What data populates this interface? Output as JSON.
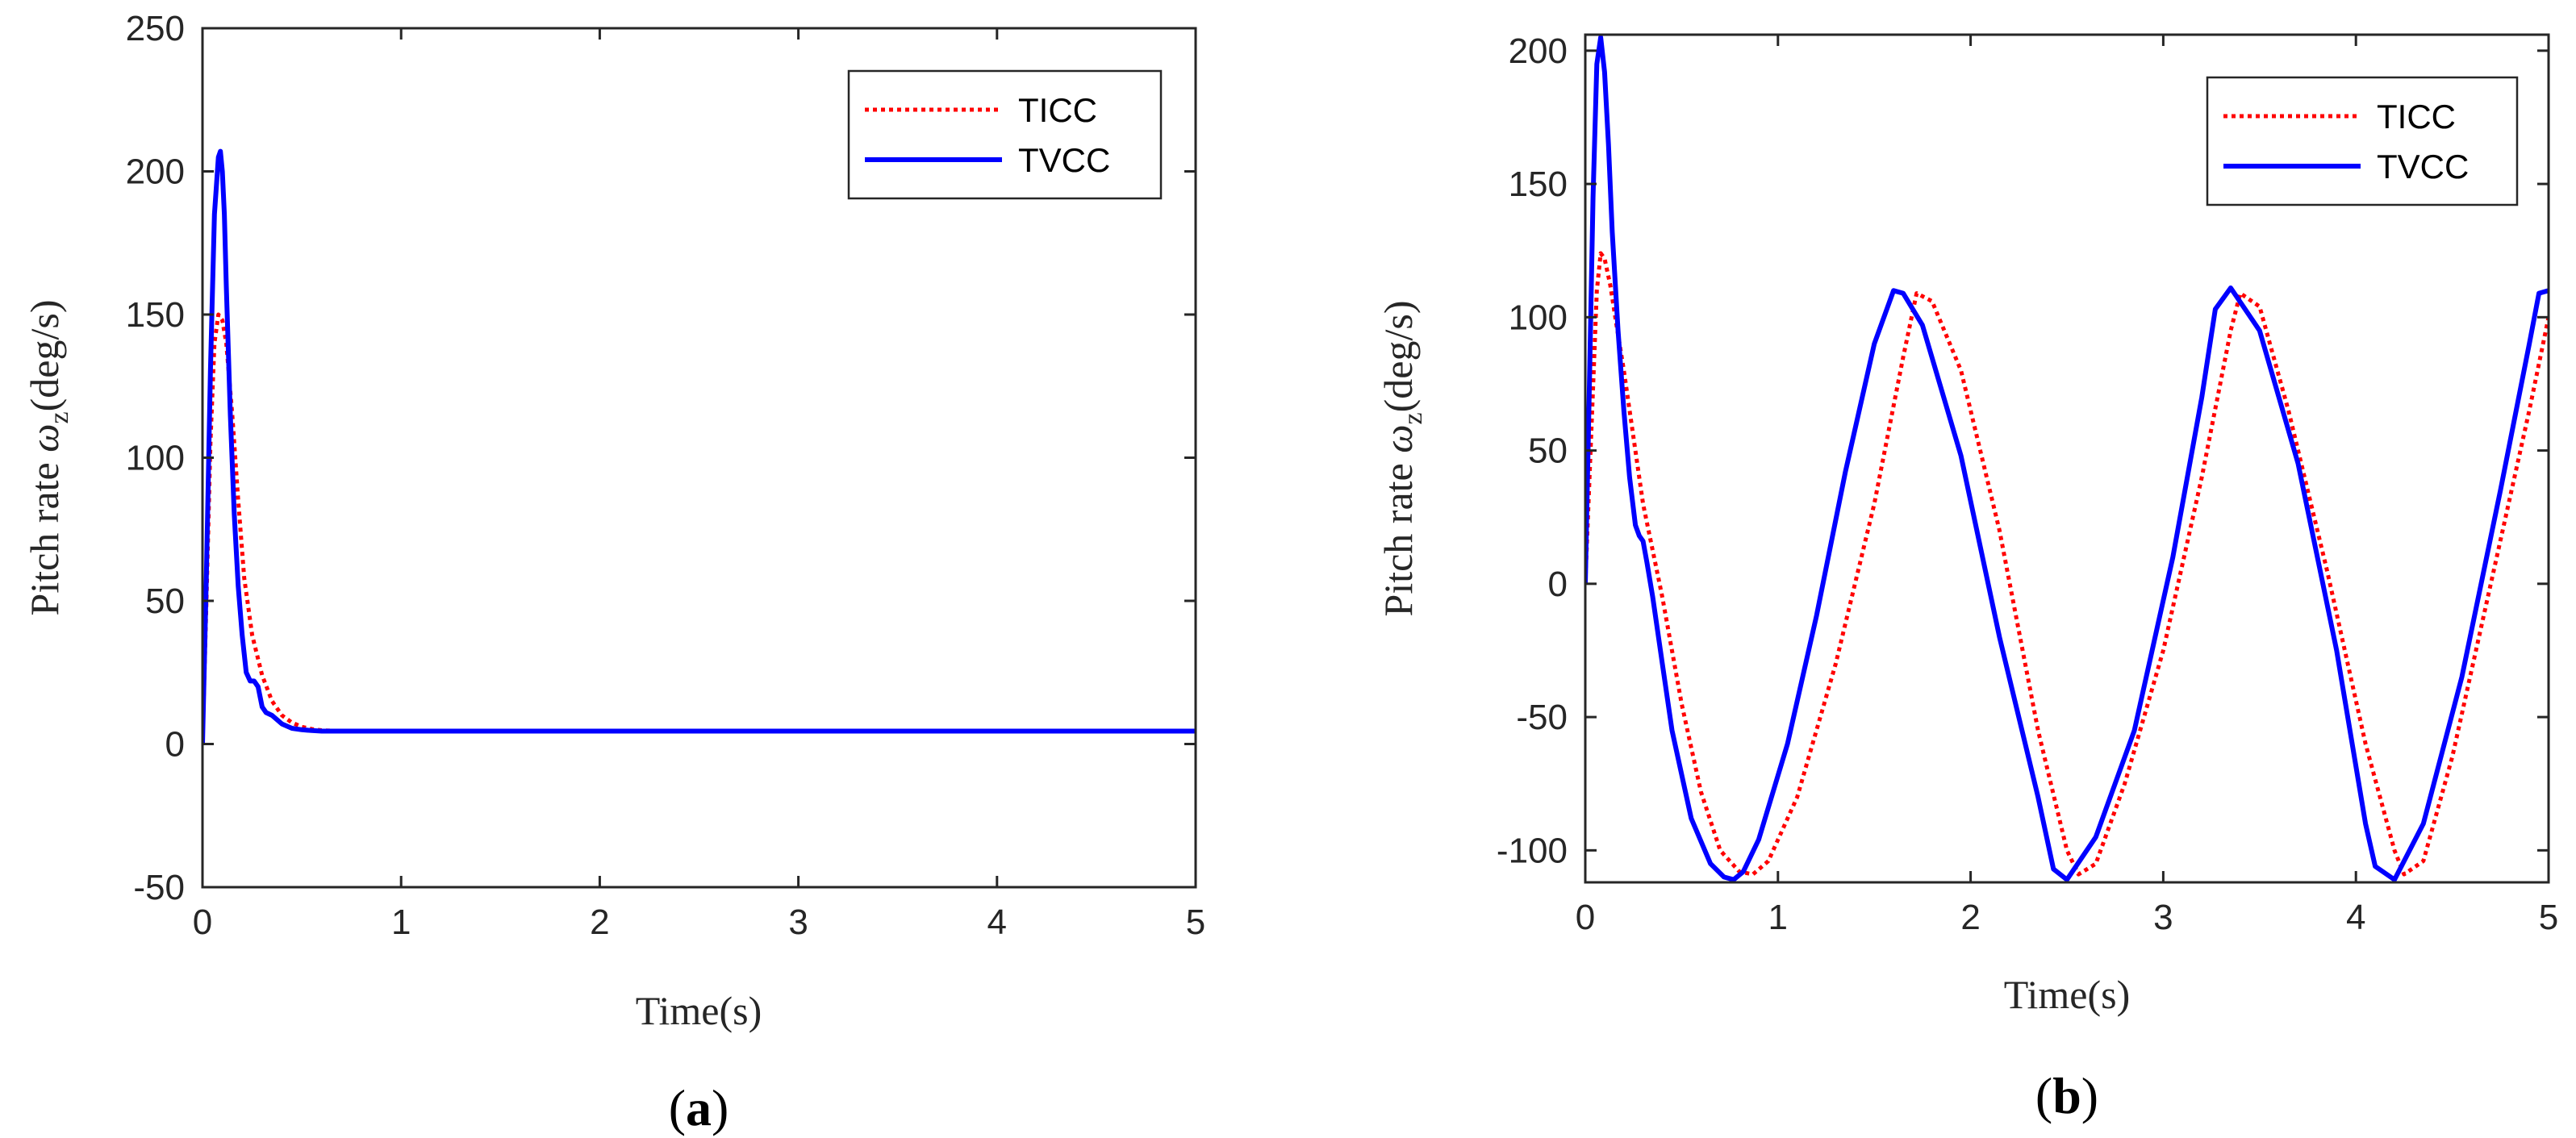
{
  "colors": {
    "ticc": "#ff0000",
    "tvcc": "#0000ff",
    "axis": "#262626"
  },
  "chart_data": [
    {
      "type": "line",
      "panel_label": "(a)",
      "panel_letter": "a",
      "xlabel": "Time(s)",
      "ylabel_prefix": "Pitch rate ",
      "ylabel_symbol": "ω",
      "ylabel_subscript": "z",
      "ylabel_suffix": "(deg/s)",
      "xlim": [
        0,
        5
      ],
      "ylim": [
        -50,
        250
      ],
      "xticks": [
        0,
        1,
        2,
        3,
        4,
        5
      ],
      "xtick_labels": [
        "0",
        "1",
        "2",
        "3",
        "4",
        "5"
      ],
      "yticks": [
        -50,
        0,
        50,
        100,
        150,
        200,
        250
      ],
      "ytick_labels": [
        "-50",
        "0",
        "50",
        "100",
        "150",
        "200",
        "250"
      ],
      "legend_position": "top-right",
      "series": [
        {
          "name": "TICC",
          "style": "dotted",
          "color": "#ff0000",
          "x": [
            0,
            0.02,
            0.04,
            0.06,
            0.08,
            0.1,
            0.12,
            0.15,
            0.18,
            0.21,
            0.25,
            0.3,
            0.35,
            0.4,
            0.45,
            0.5,
            0.55,
            0.6,
            0.7,
            0.8,
            1.0,
            2.0,
            3.0,
            4.0,
            5.0
          ],
          "y": [
            0,
            50,
            105,
            140,
            150,
            148,
            140,
            115,
            85,
            58,
            38,
            24,
            15,
            10,
            7.5,
            6,
            5.2,
            4.8,
            4.5,
            4.5,
            4.5,
            4.5,
            4.5,
            4.5,
            4.5
          ]
        },
        {
          "name": "TVCC",
          "style": "solid",
          "color": "#0000ff",
          "x": [
            0,
            0.02,
            0.04,
            0.06,
            0.08,
            0.09,
            0.1,
            0.11,
            0.12,
            0.14,
            0.16,
            0.18,
            0.2,
            0.22,
            0.24,
            0.26,
            0.28,
            0.3,
            0.32,
            0.35,
            0.4,
            0.45,
            0.5,
            0.55,
            0.6,
            0.7,
            1.0,
            2.0,
            3.0,
            4.0,
            5.0
          ],
          "y": [
            0,
            60,
            130,
            185,
            205,
            207,
            200,
            185,
            160,
            115,
            80,
            55,
            38,
            25,
            22,
            22,
            20,
            13,
            11,
            10,
            7,
            5.5,
            5,
            4.7,
            4.5,
            4.5,
            4.5,
            4.5,
            4.5,
            4.5,
            4.5
          ]
        }
      ]
    },
    {
      "type": "line",
      "panel_label": "(b)",
      "panel_letter": "b",
      "xlabel": "Time(s)",
      "ylabel_prefix": "Pitch rate ",
      "ylabel_symbol": "ω",
      "ylabel_subscript": "z",
      "ylabel_suffix": "(deg/s)",
      "xlim": [
        0,
        5
      ],
      "ylim": [
        -112,
        206
      ],
      "xticks": [
        0,
        1,
        2,
        3,
        4,
        5
      ],
      "xtick_labels": [
        "0",
        "1",
        "2",
        "3",
        "4",
        "5"
      ],
      "yticks": [
        -100,
        -50,
        0,
        50,
        100,
        150,
        200
      ],
      "ytick_labels": [
        "-100",
        "-50",
        "0",
        "50",
        "100",
        "150",
        "200"
      ],
      "legend_position": "top-right",
      "series": [
        {
          "name": "TICC",
          "style": "dotted",
          "color": "#ff0000",
          "x": [
            0,
            0.03,
            0.06,
            0.08,
            0.1,
            0.13,
            0.16,
            0.2,
            0.25,
            0.3,
            0.4,
            0.5,
            0.6,
            0.7,
            0.8,
            0.87,
            0.95,
            1.1,
            1.3,
            1.5,
            1.65,
            1.72,
            1.8,
            1.95,
            2.15,
            2.35,
            2.5,
            2.56,
            2.65,
            2.8,
            3.0,
            3.2,
            3.35,
            3.4,
            3.5,
            3.65,
            3.85,
            4.05,
            4.2,
            4.25,
            4.35,
            4.5,
            4.7,
            4.9,
            5.0
          ],
          "y": [
            0,
            55,
            110,
            124,
            122,
            112,
            98,
            80,
            55,
            30,
            -5,
            -45,
            -78,
            -100,
            -108,
            -109,
            -104,
            -80,
            -30,
            30,
            85,
            109,
            106,
            80,
            20,
            -55,
            -100,
            -109,
            -105,
            -75,
            -25,
            40,
            95,
            109,
            104,
            65,
            5,
            -60,
            -100,
            -109,
            -104,
            -65,
            0,
            65,
            100
          ]
        },
        {
          "name": "TVCC",
          "style": "solid",
          "color": "#0000ff",
          "x": [
            0,
            0.02,
            0.04,
            0.06,
            0.08,
            0.1,
            0.12,
            0.14,
            0.17,
            0.2,
            0.23,
            0.26,
            0.28,
            0.3,
            0.32,
            0.35,
            0.4,
            0.45,
            0.55,
            0.65,
            0.72,
            0.77,
            0.82,
            0.9,
            1.05,
            1.2,
            1.35,
            1.5,
            1.6,
            1.65,
            1.75,
            1.95,
            2.15,
            2.35,
            2.43,
            2.5,
            2.65,
            2.85,
            3.05,
            3.2,
            3.27,
            3.35,
            3.5,
            3.7,
            3.9,
            4.05,
            4.1,
            4.2,
            4.35,
            4.55,
            4.75,
            4.9,
            4.95,
            5.0
          ],
          "y": [
            0,
            70,
            145,
            195,
            205,
            192,
            165,
            132,
            95,
            65,
            40,
            22,
            18,
            16,
            8,
            -5,
            -30,
            -55,
            -88,
            -105,
            -110,
            -111,
            -108,
            -96,
            -60,
            -12,
            42,
            90,
            110,
            109,
            97,
            48,
            -20,
            -80,
            -107,
            -111,
            -95,
            -55,
            10,
            70,
            103,
            111,
            95,
            45,
            -25,
            -90,
            -106,
            -111,
            -90,
            -35,
            35,
            90,
            109,
            110
          ]
        }
      ]
    }
  ]
}
